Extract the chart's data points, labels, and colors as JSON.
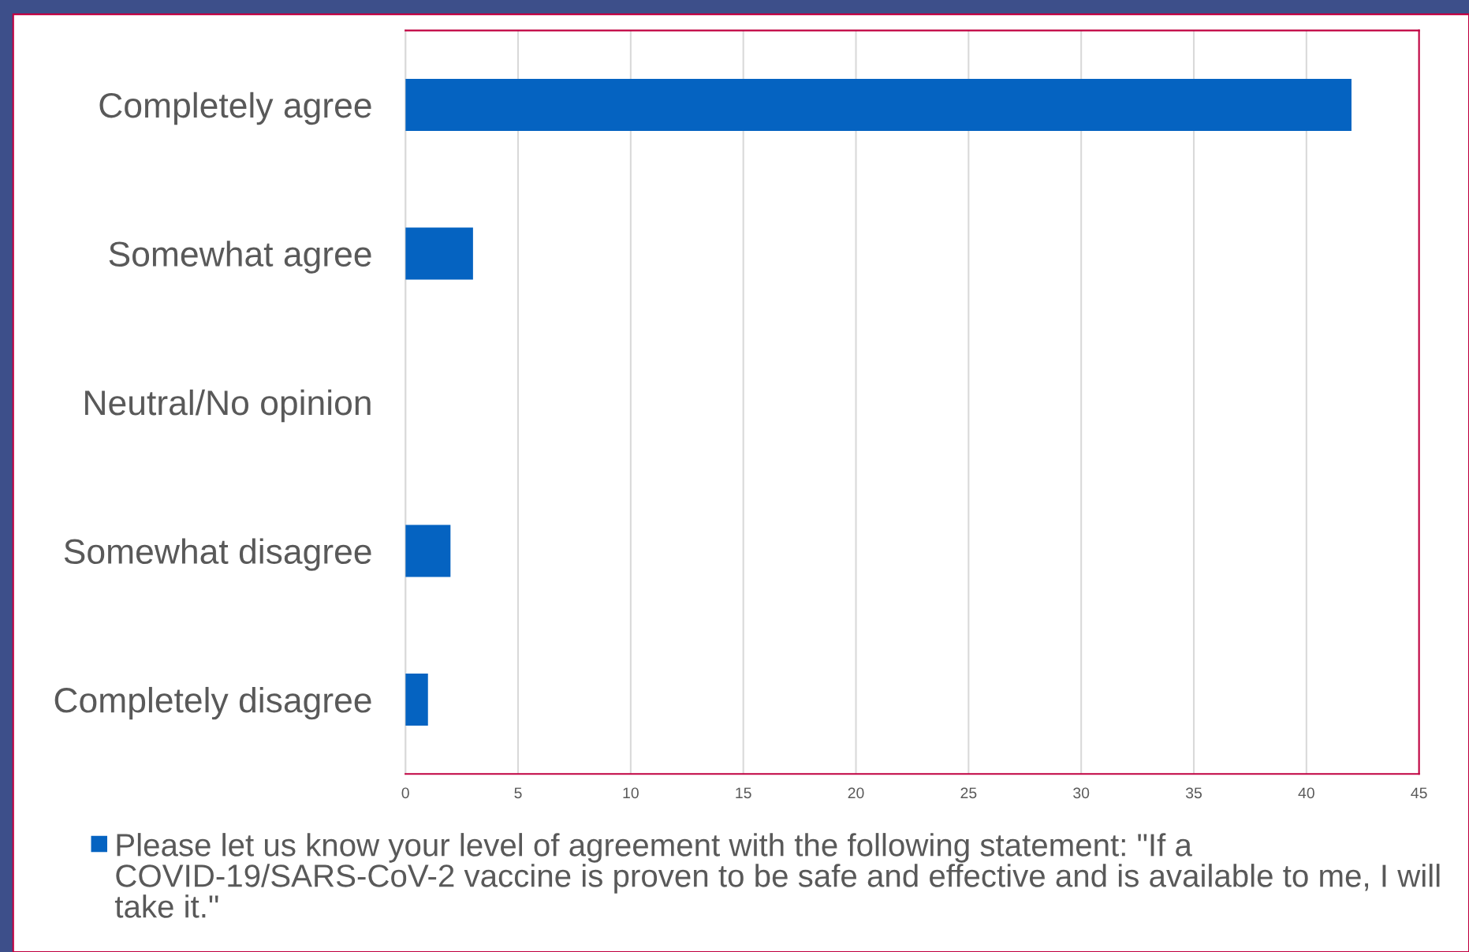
{
  "chart_data": {
    "type": "bar",
    "orientation": "horizontal",
    "categories": [
      "Completely agree",
      "Somewhat agree",
      "Neutral/No opinion",
      "Somewhat disagree",
      "Completely disagree"
    ],
    "series": [
      {
        "name": "Please let us know your level of agreement with the following statement: \"If a COVID-19/SARS-CoV-2 vaccine is proven to be safe and effective and is available to me, I will take it.\"",
        "color": "#0563c1",
        "values": [
          42,
          3,
          0,
          2,
          1
        ]
      }
    ],
    "xlim": [
      0,
      45
    ],
    "xticks": [
      0,
      5,
      10,
      15,
      20,
      25,
      30,
      35,
      40,
      45
    ],
    "grid": "x",
    "legend": "bottom"
  }
}
